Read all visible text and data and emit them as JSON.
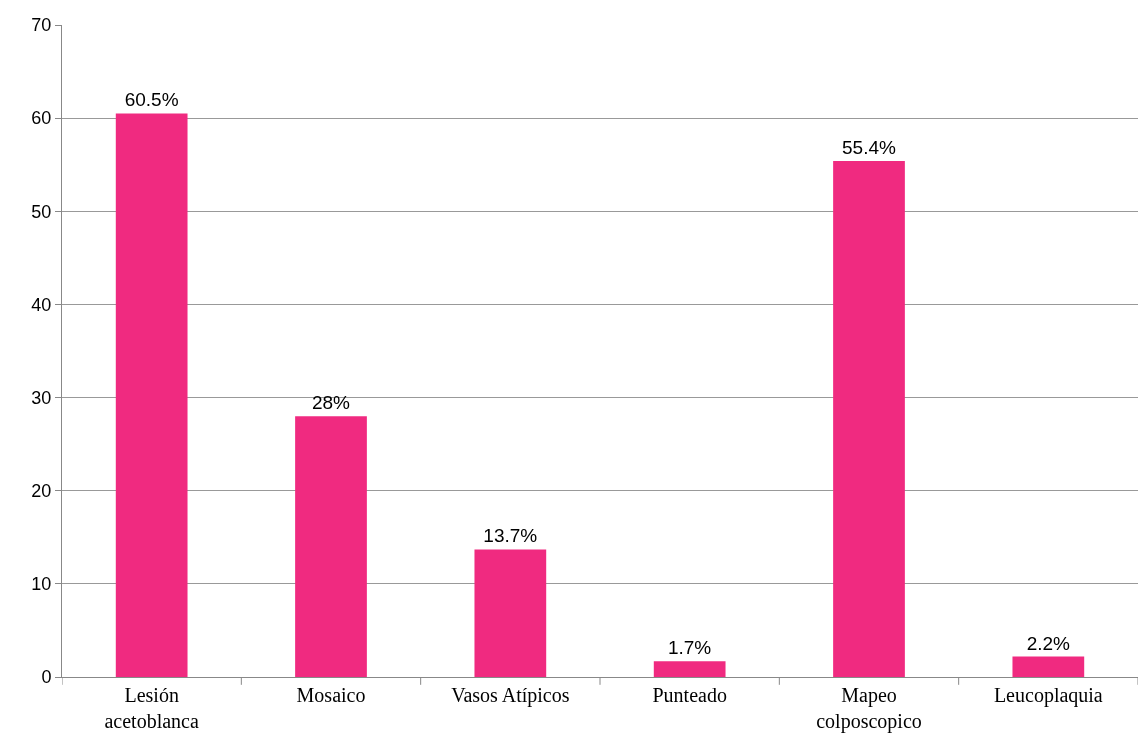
{
  "chart_data": {
    "type": "bar",
    "categories": [
      "Lesión\nacetoblanca",
      "Mosaico",
      "Vasos Atípicos",
      "Punteado",
      "Mapeo\ncolposcopico",
      "Leucoplaquia"
    ],
    "values": [
      60.5,
      28,
      13.7,
      1.7,
      55.4,
      2.2
    ],
    "value_labels": [
      "60.5%",
      "28%",
      "13.7%",
      "1.7%",
      "55.4%",
      "2.2%"
    ],
    "color": "#f02a80",
    "ylim": [
      0,
      70
    ],
    "yticks": [
      0,
      10,
      20,
      30,
      40,
      50,
      60,
      70
    ],
    "grid": "y"
  }
}
